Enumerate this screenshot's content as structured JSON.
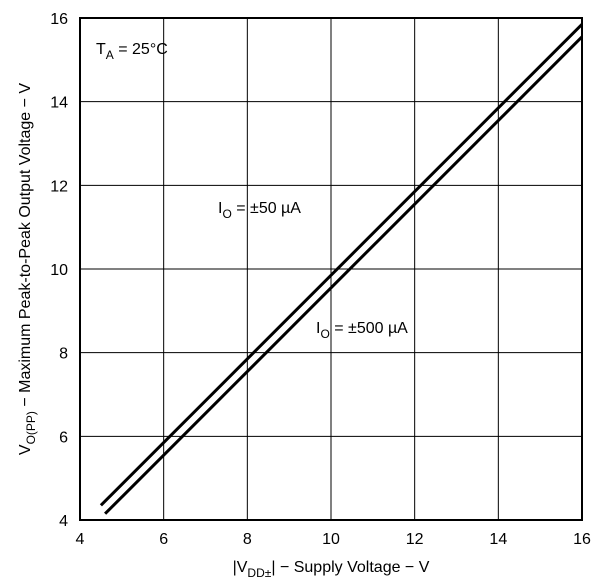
{
  "chart_data": {
    "type": "line",
    "xlabel": {
      "prefix": "|V",
      "sub": "DD±",
      "suffix": "| − Supply Voltage  − V"
    },
    "ylabel": {
      "prefix": "V",
      "sub": "O(PP)",
      "suffix": " − Maximum Peak-to-Peak Output Voltage − V"
    },
    "xlim": [
      4,
      16
    ],
    "ylim": [
      4,
      16
    ],
    "xticks": [
      "4",
      "6",
      "8",
      "10",
      "12",
      "14",
      "16"
    ],
    "yticks": [
      "4",
      "6",
      "8",
      "10",
      "12",
      "14",
      "16"
    ],
    "grid": true,
    "condition": {
      "prefix": "T",
      "sub": "A",
      "suffix": " = 25°C"
    },
    "series": [
      {
        "name": {
          "prefix": "I",
          "sub": "O",
          "suffix": " = ±50 µA"
        },
        "x": [
          4.5,
          16
        ],
        "y": [
          4.35,
          15.85
        ]
      },
      {
        "name": {
          "prefix": "I",
          "sub": "O",
          "suffix": " = ±500 µA"
        },
        "x": [
          4.6,
          16
        ],
        "y": [
          4.15,
          15.55
        ]
      }
    ],
    "line_color": "#000000",
    "grid_color": "#000000"
  }
}
